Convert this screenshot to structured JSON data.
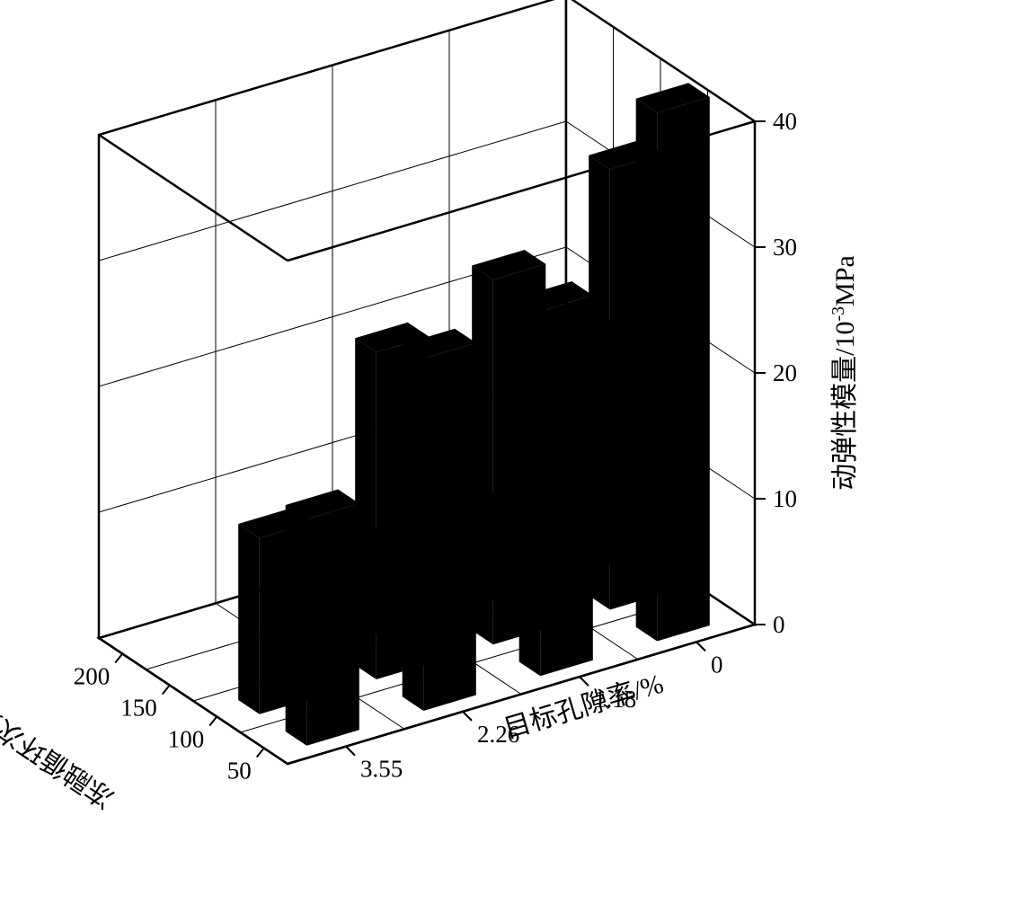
{
  "chart": {
    "type": "bar3d",
    "background_color": "#ffffff",
    "bar_color": "#000000",
    "floor_fill": "#ffffff",
    "wall_fill": "#ffffff",
    "grid_color": "#000000",
    "panel_border_color": "#000000",
    "grid_line_width": 1,
    "panel_border_width": 2.5,
    "bar_relative_width": 0.45,
    "x_axis": {
      "title": "冻融循环次数/次",
      "categories": [
        "50",
        "100",
        "150",
        "200"
      ],
      "title_fontsize": 30,
      "tick_fontsize": 27
    },
    "y_axis": {
      "title": "目标孔隙率/%",
      "categories": [
        "3.55",
        "2.26",
        "1.18",
        "0"
      ],
      "title_fontsize": 30,
      "tick_fontsize": 27
    },
    "z_axis": {
      "title": "动弹性模量/10⁻³MPa",
      "min": 0,
      "max": 40,
      "tick_step": 10,
      "ticks": [
        "0",
        "10",
        "20",
        "30",
        "40"
      ],
      "title_fontsize": 30,
      "tick_fontsize": 27
    },
    "data_comment": "data[x_index][y_index] where x=cycles(50..200), y=porosity(3.55..0)",
    "data": [
      [
        18,
        28,
        29,
        42
      ],
      [
        14,
        26,
        29,
        35
      ],
      [
        0,
        8,
        8,
        19
      ],
      [
        0,
        0,
        10,
        11
      ]
    ]
  }
}
